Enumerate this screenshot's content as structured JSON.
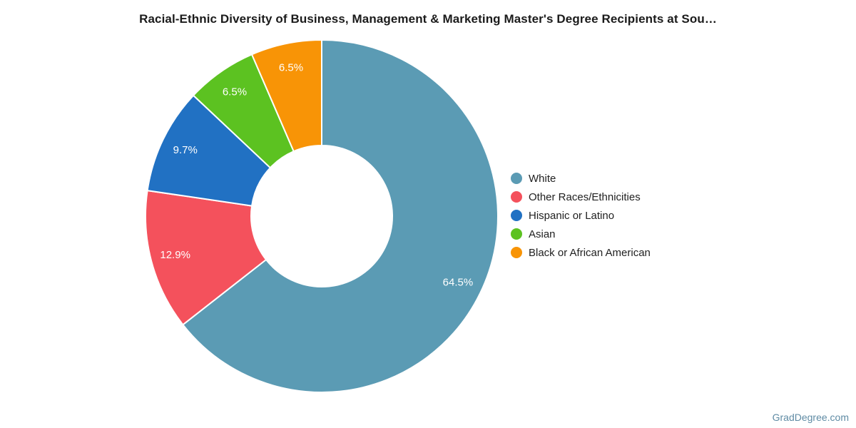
{
  "page": {
    "background": "#ffffff"
  },
  "chart_data": {
    "type": "pie",
    "subtype": "donut",
    "title": "Racial-Ethnic Diversity of Business, Management & Marketing Master's Degree Recipients at Sou…",
    "unit": "%",
    "start_angle_deg": 0,
    "direction": "clockwise",
    "inner_radius_ratio": 0.4,
    "legend_position": "right",
    "slice_label_color": "#ffffff",
    "slice_border_color": "#ffffff",
    "slices": [
      {
        "label": "White",
        "value": 64.5,
        "display": "64.5%",
        "color": "#5b9bb4"
      },
      {
        "label": "Other Races/Ethnicities",
        "value": 12.9,
        "display": "12.9%",
        "color": "#f4515c"
      },
      {
        "label": "Hispanic or Latino",
        "value": 9.7,
        "display": "9.7%",
        "color": "#2171c3"
      },
      {
        "label": "Asian",
        "value": 6.5,
        "display": "6.5%",
        "color": "#5cc221"
      },
      {
        "label": "Black or African American",
        "value": 6.5,
        "display": "6.5%",
        "color": "#f89406"
      }
    ]
  },
  "footer": {
    "watermark": "GradDegree.com",
    "watermark_color": "#5f8ba4"
  }
}
